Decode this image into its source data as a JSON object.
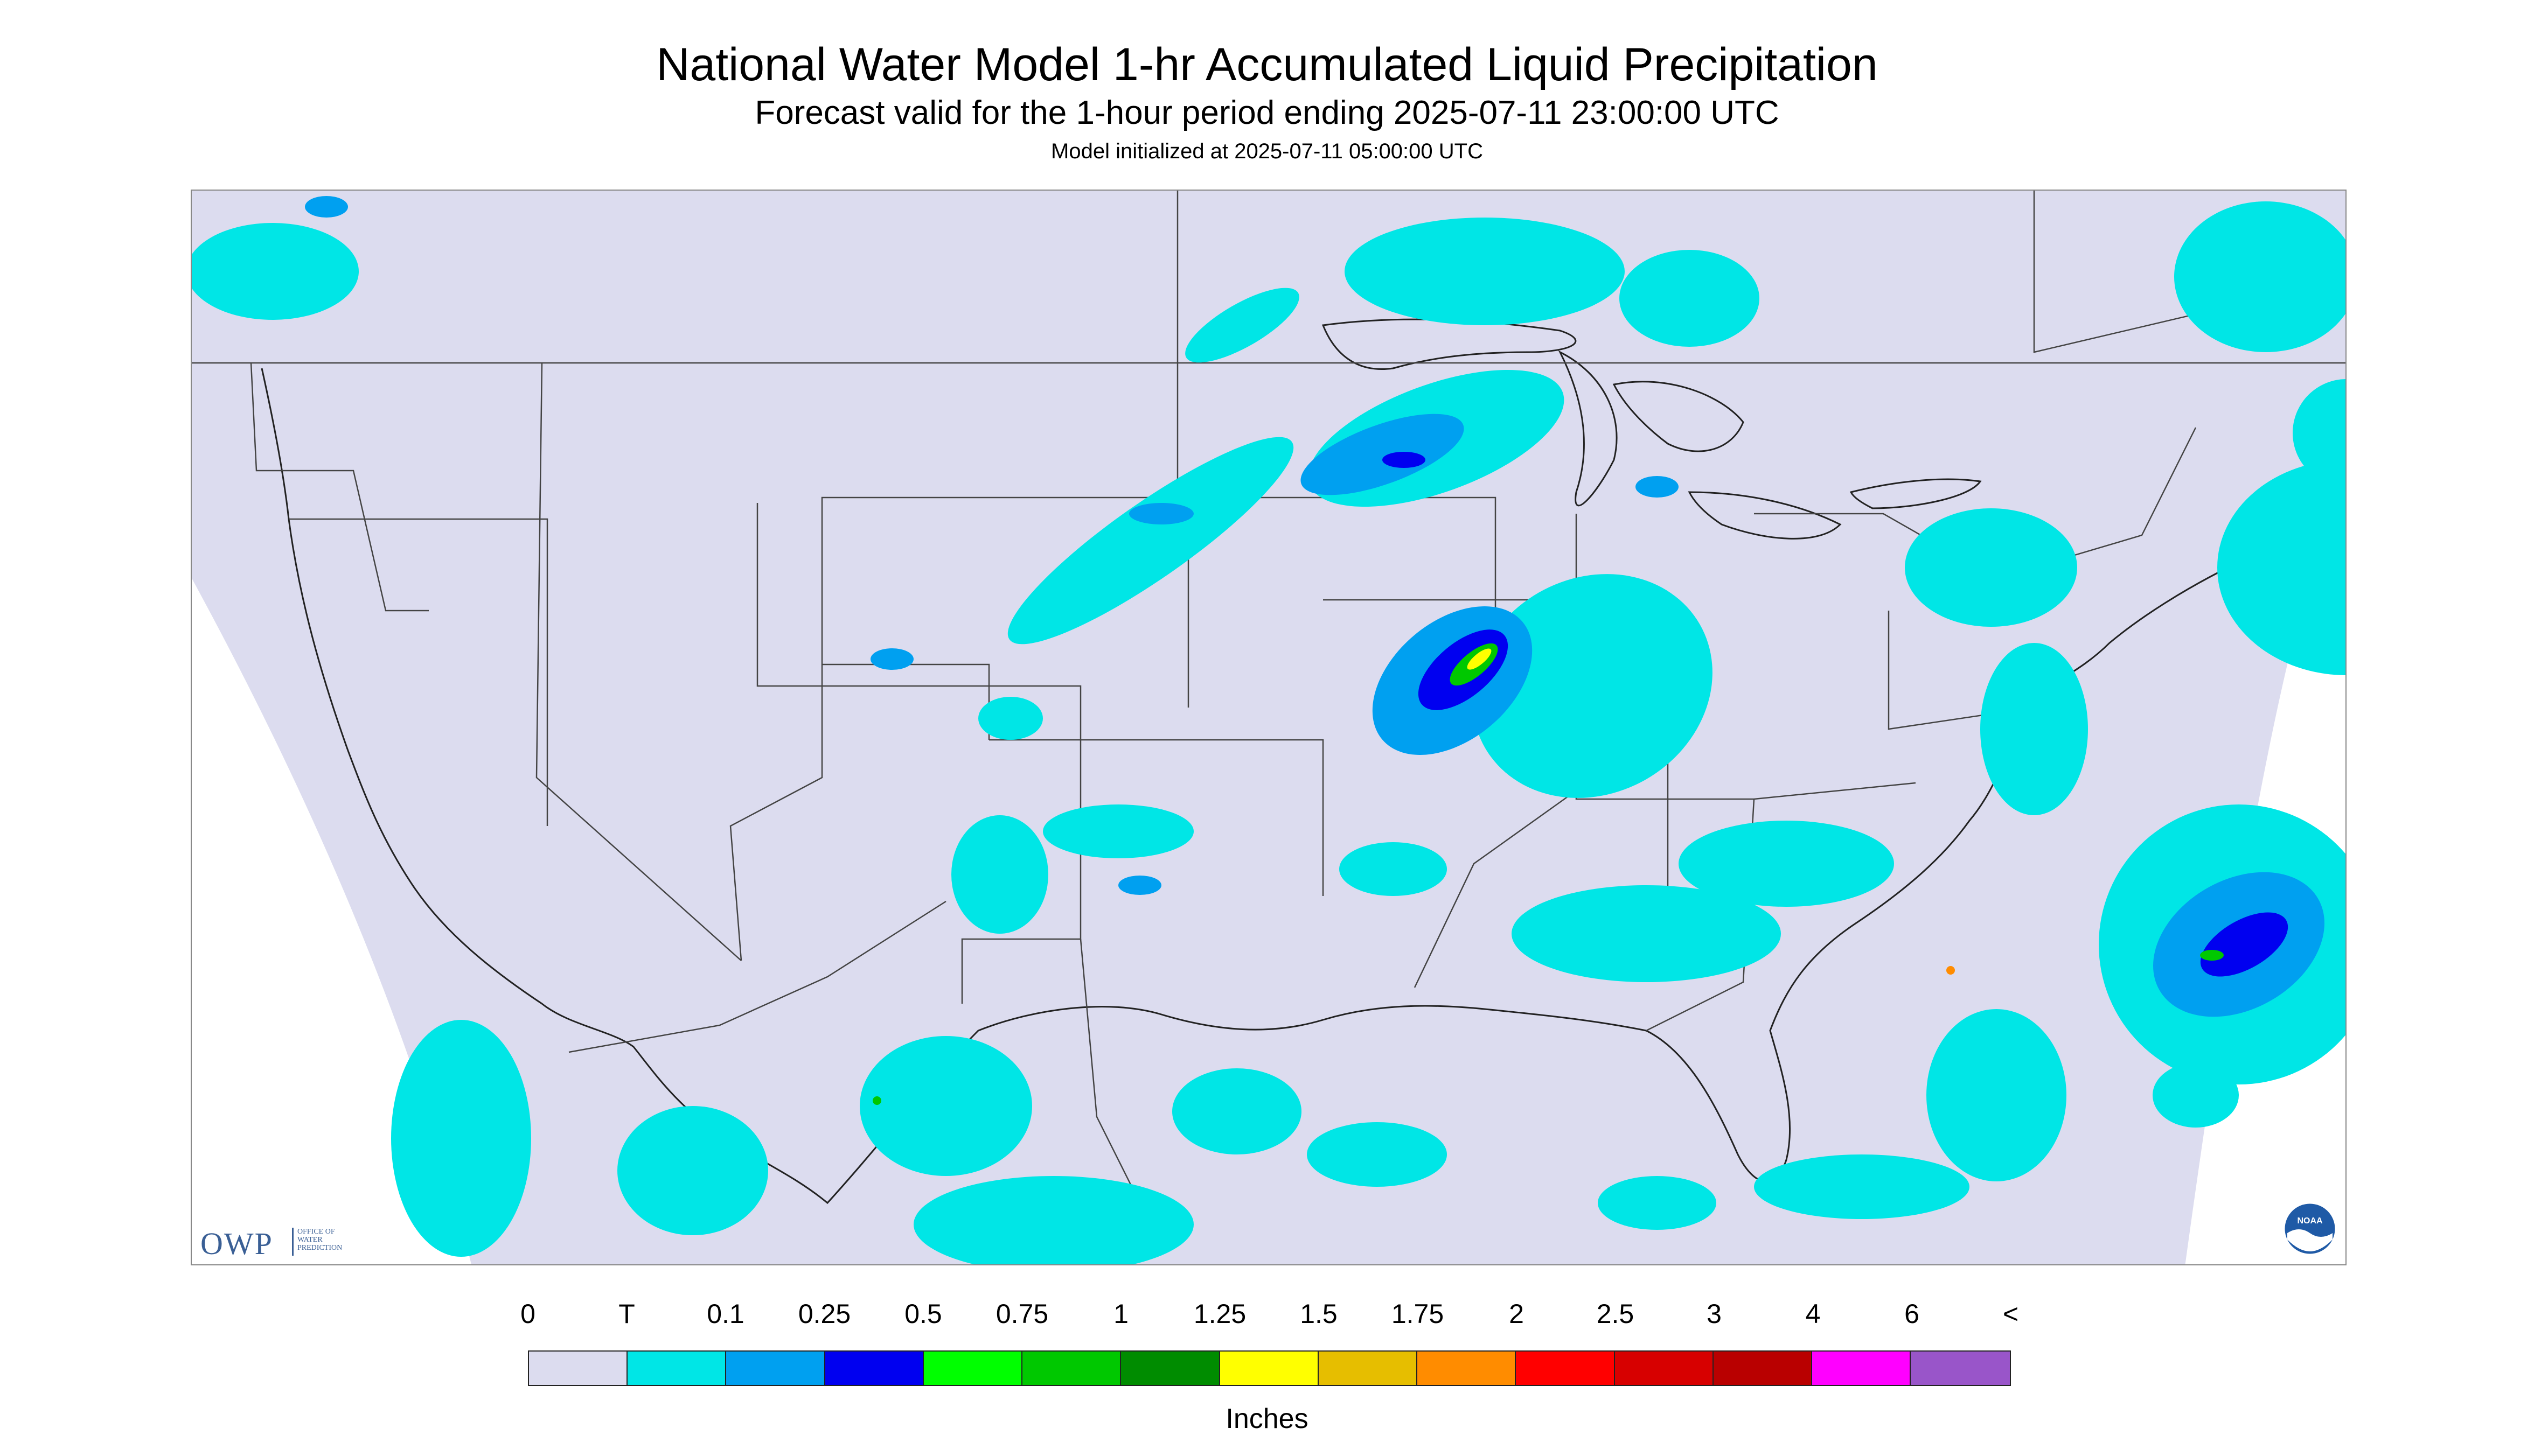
{
  "header": {
    "title": "National Water Model 1-hr Accumulated Liquid Precipitation",
    "subtitle": "Forecast valid for the 1-hour period ending 2025-07-11 23:00:00 UTC",
    "init": "Model initialized at 2025-07-11 05:00:00 UTC"
  },
  "map": {
    "region": "Contiguous United States",
    "background_color": "#dcdcef",
    "outside_color": "#ffffff",
    "boundary_color": "#222222"
  },
  "logos": {
    "owp": {
      "acronym": "OWP",
      "line1": "OFFICE OF",
      "line2": "WATER",
      "line3": "PREDICTION"
    },
    "noaa": {
      "text": "NOAA"
    }
  },
  "legend": {
    "labels": [
      "0",
      "T",
      "0.1",
      "0.25",
      "0.5",
      "0.75",
      "1",
      "1.25",
      "1.5",
      "1.75",
      "2",
      "2.5",
      "3",
      "4",
      "6",
      "<"
    ],
    "colors": [
      "#dcdcef",
      "#00e6e6",
      "#00a0f0",
      "#0000f0",
      "#00ff00",
      "#00c800",
      "#008c00",
      "#ffff00",
      "#e6be00",
      "#ff8c00",
      "#ff0000",
      "#d70000",
      "#b90000",
      "#ff00ff",
      "#9955c9"
    ],
    "units": "Inches"
  }
}
